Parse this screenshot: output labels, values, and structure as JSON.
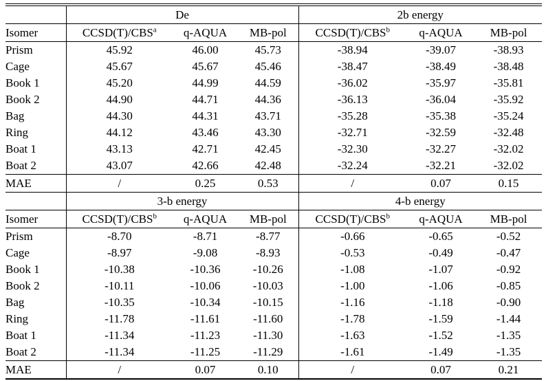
{
  "page": {
    "background": "#ffffff",
    "text_color": "#000000",
    "rule_color": "#000000"
  },
  "tables": [
    {
      "group_headers": [
        {
          "label": "",
          "span": 1
        },
        {
          "label": "De",
          "span": 3
        },
        {
          "label": "2b energy",
          "span": 3
        }
      ],
      "columns": [
        {
          "label": "Isomer",
          "sup": ""
        },
        {
          "label": "CCSD(T)/CBS",
          "sup": "a"
        },
        {
          "label": "q-AQUA",
          "sup": ""
        },
        {
          "label": "MB-pol",
          "sup": ""
        },
        {
          "label": "CCSD(T)/CBS",
          "sup": "b"
        },
        {
          "label": "q-AQUA",
          "sup": ""
        },
        {
          "label": "MB-pol",
          "sup": ""
        }
      ],
      "rows": [
        [
          "Prism",
          "45.92",
          "46.00",
          "45.73",
          "-38.94",
          "-39.07",
          "-38.93"
        ],
        [
          "Cage",
          "45.67",
          "45.67",
          "45.46",
          "-38.47",
          "-38.49",
          "-38.48"
        ],
        [
          "Book 1",
          "45.20",
          "44.99",
          "44.59",
          "-36.02",
          "-35.97",
          "-35.81"
        ],
        [
          "Book 2",
          "44.90",
          "44.71",
          "44.36",
          "-36.13",
          "-36.04",
          "-35.92"
        ],
        [
          "Bag",
          "44.30",
          "44.31",
          "43.71",
          "-35.28",
          "-35.38",
          "-35.24"
        ],
        [
          "Ring",
          "44.12",
          "43.46",
          "43.30",
          "-32.71",
          "-32.59",
          "-32.48"
        ],
        [
          "Boat 1",
          "43.13",
          "42.71",
          "42.45",
          "-32.30",
          "-32.27",
          "-32.02"
        ],
        [
          "Boat 2",
          "43.07",
          "42.66",
          "42.48",
          "-32.24",
          "-32.21",
          "-32.02"
        ]
      ],
      "mae_row": [
        "MAE",
        "/",
        "0.25",
        "0.53",
        "/",
        "0.07",
        "0.15"
      ]
    },
    {
      "group_headers": [
        {
          "label": "",
          "span": 1
        },
        {
          "label": "3-b energy",
          "span": 3
        },
        {
          "label": "4-b energy",
          "span": 3
        }
      ],
      "columns": [
        {
          "label": "Isomer",
          "sup": ""
        },
        {
          "label": "CCSD(T)/CBS",
          "sup": "b"
        },
        {
          "label": "q-AQUA",
          "sup": ""
        },
        {
          "label": "MB-pol",
          "sup": ""
        },
        {
          "label": "CCSD(T)/CBS",
          "sup": "b"
        },
        {
          "label": "q-AQUA",
          "sup": ""
        },
        {
          "label": "MB-pol",
          "sup": ""
        }
      ],
      "rows": [
        [
          "Prism",
          "-8.70",
          "-8.71",
          "-8.77",
          "-0.66",
          "-0.65",
          "-0.52"
        ],
        [
          "Cage",
          "-8.97",
          "-9.08",
          "-8.93",
          "-0.53",
          "-0.49",
          "-0.47"
        ],
        [
          "Book 1",
          "-10.38",
          "-10.36",
          "-10.26",
          "-1.08",
          "-1.07",
          "-0.92"
        ],
        [
          "Book 2",
          "-10.11",
          "-10.06",
          "-10.03",
          "-1.00",
          "-1.06",
          "-0.85"
        ],
        [
          "Bag",
          "-10.35",
          "-10.34",
          "-10.15",
          "-1.16",
          "-1.18",
          "-0.90"
        ],
        [
          "Ring",
          "-11.78",
          "-11.61",
          "-11.60",
          "-1.78",
          "-1.59",
          "-1.44"
        ],
        [
          "Boat 1",
          "-11.34",
          "-11.23",
          "-11.30",
          "-1.63",
          "-1.52",
          "-1.35"
        ],
        [
          "Boat 2",
          "-11.34",
          "-11.25",
          "-11.29",
          "-1.61",
          "-1.49",
          "-1.35"
        ]
      ],
      "mae_row": [
        "MAE",
        "/",
        "0.07",
        "0.10",
        "/",
        "0.07",
        "0.21"
      ]
    }
  ]
}
